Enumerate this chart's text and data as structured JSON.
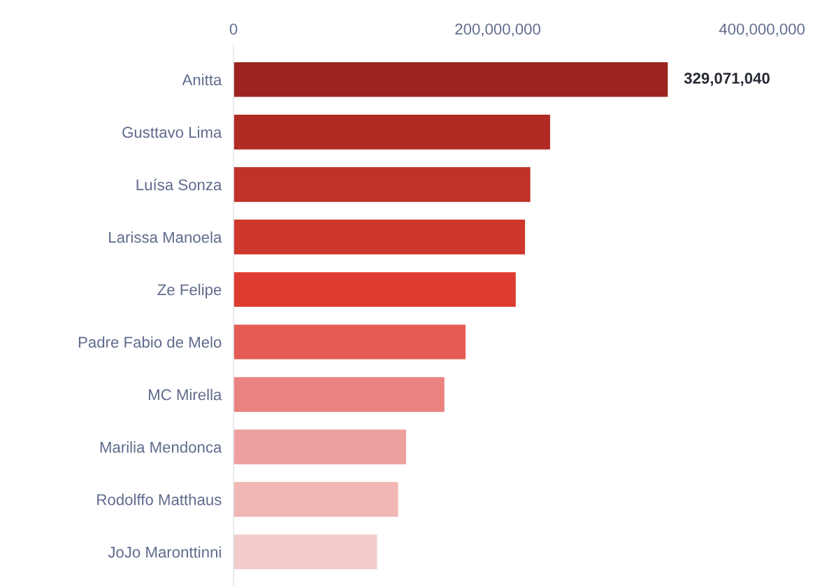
{
  "chart_data": {
    "type": "bar",
    "orientation": "horizontal",
    "categories": [
      "Anitta",
      "Gusttavo Lima",
      "Luísa Sonza",
      "Larissa Manoela",
      "Ze Felipe",
      "Padre Fabio de Melo",
      "MC Mirella",
      "Marilia Mendonca",
      "Rodolffo Matthaus",
      "JoJo Maronttinni"
    ],
    "values": [
      329071040,
      240000000,
      225000000,
      221000000,
      214000000,
      176000000,
      160000000,
      131000000,
      125000000,
      109000000
    ],
    "colors": [
      "#9b241e",
      "#b02b24",
      "#c03128",
      "#cf372c",
      "#de3b30",
      "#e55c56",
      "#ea837f",
      "#eda09e",
      "#f0b7b5",
      "#f3cbcb"
    ],
    "value_labels": [
      "329,071,040",
      null,
      null,
      null,
      null,
      null,
      null,
      null,
      null,
      null
    ],
    "xlim": [
      0,
      400000000
    ],
    "xticks": [
      0,
      {
        "value": 200000000,
        "label": "200,000,000"
      },
      {
        "value": 400000000,
        "label": "400,000,000"
      }
    ],
    "grid": false,
    "legend": false
  }
}
